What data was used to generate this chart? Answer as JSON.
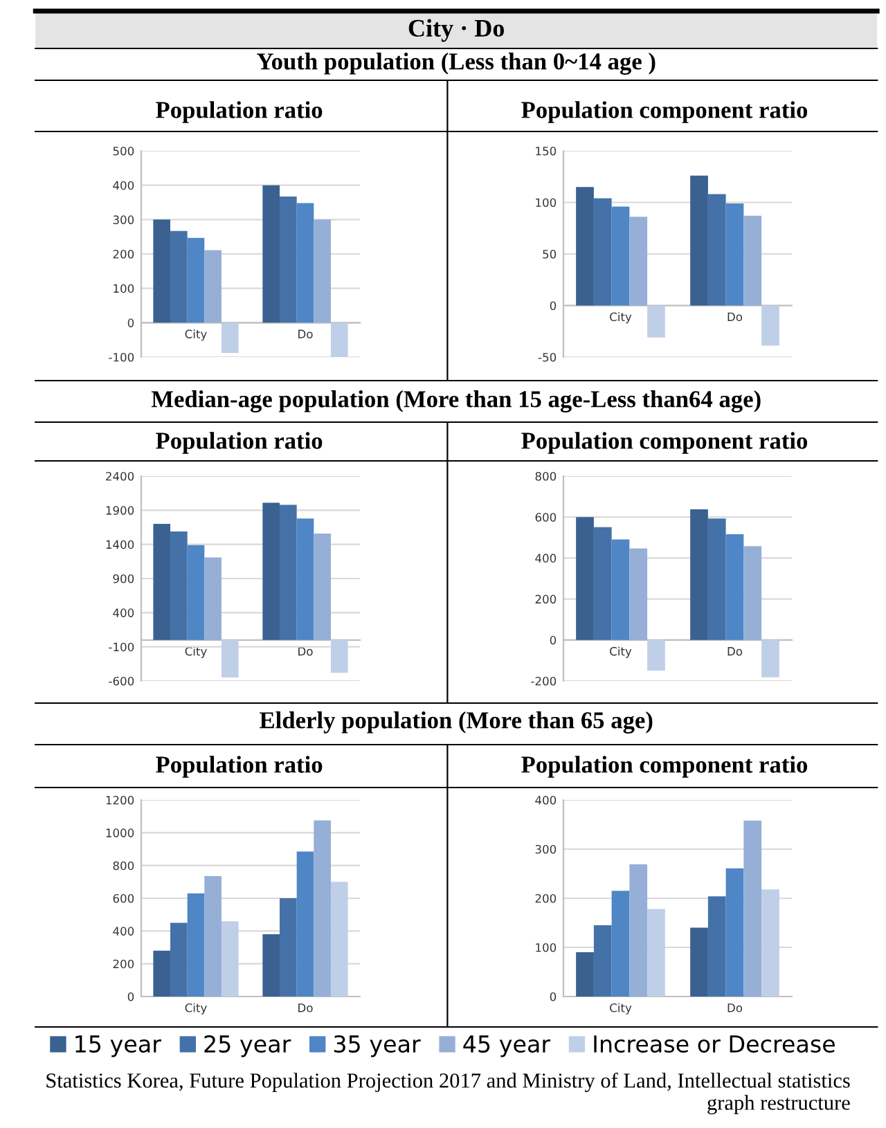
{
  "chart_data": [
    {
      "type": "bar",
      "title": "Population ratio",
      "subtitle": "Youth population (Less than 0~14 age )",
      "annotations": [
        "City · Do"
      ],
      "legend": "bottom",
      "categories": [
        "City",
        "Do"
      ],
      "ylim": [
        -100,
        500
      ],
      "yticks": [
        -100,
        0,
        100,
        200,
        300,
        400,
        500
      ],
      "grid": "y",
      "series": [
        {
          "name": "15 year",
          "color": "#3a6190",
          "values": [
            300,
            400
          ]
        },
        {
          "name": "25 year",
          "color": "#4472a8",
          "values": [
            267,
            367
          ]
        },
        {
          "name": "35 year",
          "color": "#4f86c6",
          "values": [
            247,
            348
          ]
        },
        {
          "name": "45 year",
          "color": "#95afd6",
          "values": [
            211,
            300
          ]
        },
        {
          "name": "Increase or Decrease",
          "color": "#c0cfe8",
          "values": [
            -88,
            -100
          ]
        }
      ]
    },
    {
      "type": "bar",
      "title": "Population component ratio",
      "categories": [
        "City",
        "Do"
      ],
      "ylim": [
        -50,
        150
      ],
      "yticks": [
        -50,
        0,
        50,
        100,
        150
      ],
      "grid": "y",
      "series": [
        {
          "color": "#3a6190",
          "values": [
            115,
            126
          ]
        },
        {
          "color": "#4472a8",
          "values": [
            104,
            108
          ]
        },
        {
          "color": "#4f86c6",
          "values": [
            96,
            99
          ]
        },
        {
          "color": "#95afd6",
          "values": [
            86,
            87
          ]
        },
        {
          "color": "#c0cfe8",
          "values": [
            -31,
            -39
          ]
        }
      ]
    },
    {
      "type": "bar",
      "title": "Population ratio",
      "subtitle": "Median-age population (More than 15 age-Less than64 age)",
      "categories": [
        "City",
        "Do"
      ],
      "ylim": [
        -600,
        2400
      ],
      "yticks": [
        -600,
        -100,
        400,
        900,
        1400,
        1900,
        2400
      ],
      "grid": "y",
      "series": [
        {
          "color": "#3a6190",
          "values": [
            1700,
            2010
          ]
        },
        {
          "color": "#4472a8",
          "values": [
            1590,
            1980
          ]
        },
        {
          "color": "#4f86c6",
          "values": [
            1390,
            1780
          ]
        },
        {
          "color": "#95afd6",
          "values": [
            1210,
            1560
          ]
        },
        {
          "color": "#c0cfe8",
          "values": [
            -550,
            -480
          ]
        }
      ]
    },
    {
      "type": "bar",
      "title": "Population component ratio",
      "categories": [
        "City",
        "Do"
      ],
      "ylim": [
        -200,
        800
      ],
      "yticks": [
        -200,
        0,
        200,
        400,
        600,
        800
      ],
      "grid": "y",
      "series": [
        {
          "color": "#3a6190",
          "values": [
            600,
            638
          ]
        },
        {
          "color": "#4472a8",
          "values": [
            551,
            593
          ]
        },
        {
          "color": "#4f86c6",
          "values": [
            491,
            516
          ]
        },
        {
          "color": "#95afd6",
          "values": [
            447,
            458
          ]
        },
        {
          "color": "#c0cfe8",
          "values": [
            -149,
            -182
          ]
        }
      ]
    },
    {
      "type": "bar",
      "title": "Population ratio",
      "subtitle": "Elderly population (More than 65 age)",
      "categories": [
        "City",
        "Do"
      ],
      "ylim": [
        0,
        1200
      ],
      "yticks": [
        0,
        200,
        400,
        600,
        800,
        1000,
        1200
      ],
      "grid": "y",
      "series": [
        {
          "color": "#3a6190",
          "values": [
            280,
            380
          ]
        },
        {
          "color": "#4472a8",
          "values": [
            450,
            600
          ]
        },
        {
          "color": "#4f86c6",
          "values": [
            630,
            885
          ]
        },
        {
          "color": "#95afd6",
          "values": [
            735,
            1075
          ]
        },
        {
          "color": "#c0cfe8",
          "values": [
            460,
            700
          ]
        }
      ]
    },
    {
      "type": "bar",
      "title": "Population component ratio",
      "categories": [
        "City",
        "Do"
      ],
      "ylim": [
        0,
        400
      ],
      "yticks": [
        0,
        100,
        200,
        300,
        400
      ],
      "grid": "y",
      "annotations": [
        "Statistics Korea, Future Population Projection 2017 and Ministry of Land, Intellectual statistics graph restructure"
      ],
      "series": [
        {
          "color": "#3a6190",
          "values": [
            90,
            140
          ]
        },
        {
          "color": "#4472a8",
          "values": [
            145,
            204
          ]
        },
        {
          "color": "#4f86c6",
          "values": [
            215,
            261
          ]
        },
        {
          "color": "#95afd6",
          "values": [
            269,
            358
          ]
        },
        {
          "color": "#c0cfe8",
          "values": [
            178,
            218
          ]
        }
      ]
    }
  ]
}
